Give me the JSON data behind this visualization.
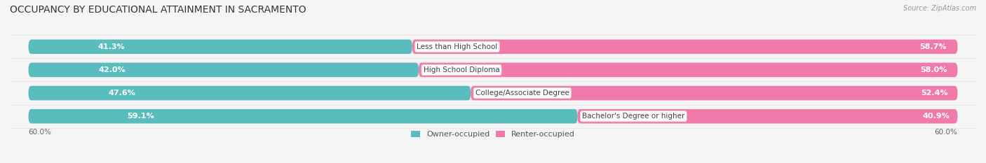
{
  "title": "OCCUPANCY BY EDUCATIONAL ATTAINMENT IN SACRAMENTO",
  "source": "Source: ZipAtlas.com",
  "categories": [
    "Less than High School",
    "High School Diploma",
    "College/Associate Degree",
    "Bachelor's Degree or higher"
  ],
  "owner_values": [
    41.3,
    42.0,
    47.6,
    59.1
  ],
  "renter_values": [
    58.7,
    58.0,
    52.4,
    40.9
  ],
  "owner_color": "#5bbcbe",
  "renter_color": "#f07aaa",
  "bar_bg_color": "#e8e8e8",
  "owner_label": "Owner-occupied",
  "renter_label": "Renter-occupied",
  "axis_label_left": "60.0%",
  "axis_label_right": "60.0%",
  "title_fontsize": 10,
  "label_fontsize": 8,
  "value_fontsize": 8,
  "cat_fontsize": 7.5,
  "bar_height": 0.62,
  "background_color": "#f5f5f5",
  "separator_color": "#cccccc",
  "text_color_dark": "#444444",
  "text_color_light": "white",
  "source_color": "#999999"
}
